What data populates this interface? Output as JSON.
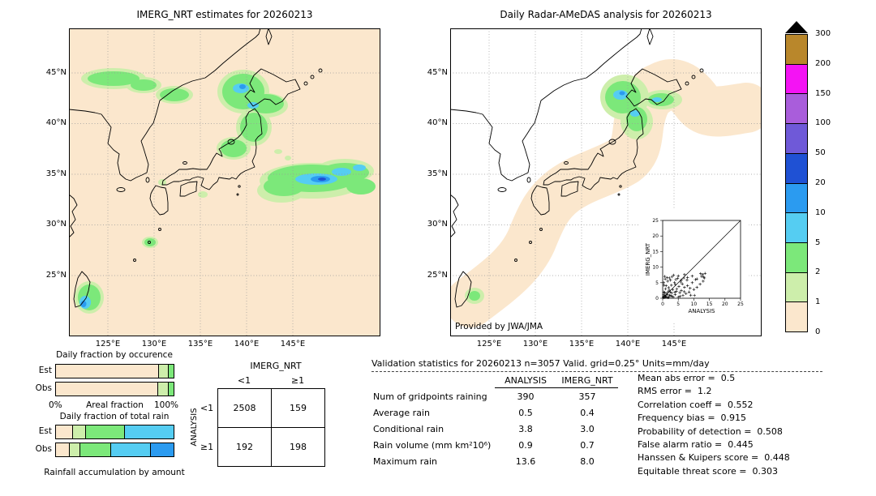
{
  "chart_data": [
    {
      "type": "map",
      "id": "imerg_map",
      "title": "IMERG_NRT estimates for 20260213",
      "lat_ticks": [
        "45°N",
        "40°N",
        "35°N",
        "30°N",
        "25°N"
      ],
      "lon_ticks": [
        "125°E",
        "130°E",
        "135°E",
        "140°E",
        "145°E"
      ],
      "units": "mm/day"
    },
    {
      "type": "map",
      "id": "radar_amedas_map",
      "title": "Daily Radar-AMeDAS analysis for 20260213",
      "credit": "Provided by JWA/JMA",
      "lat_ticks": [
        "45°N",
        "40°N",
        "35°N",
        "30°N",
        "25°N"
      ],
      "lon_ticks": [
        "125°E",
        "130°E",
        "135°E",
        "140°E",
        "145°E"
      ],
      "units": "mm/day"
    },
    {
      "type": "scatter",
      "id": "inset_scatter",
      "xlabel": "ANALYSIS",
      "ylabel": "IMERG_NRT",
      "xlim": [
        0,
        25
      ],
      "ylim": [
        0,
        25
      ],
      "ticks": [
        "0",
        "5",
        "10",
        "15",
        "20",
        "25"
      ],
      "points": [
        [
          0.2,
          0.3
        ],
        [
          0.5,
          0.2
        ],
        [
          0.3,
          1.1
        ],
        [
          1.0,
          0.5
        ],
        [
          0.8,
          0.9
        ],
        [
          1.2,
          0.4
        ],
        [
          0.4,
          2.0
        ],
        [
          2.0,
          0.3
        ],
        [
          1.5,
          1.2
        ],
        [
          0.6,
          1.8
        ],
        [
          2.2,
          1.0
        ],
        [
          1.8,
          2.1
        ],
        [
          0.9,
          3.0
        ],
        [
          3.0,
          0.6
        ],
        [
          2.5,
          2.0
        ],
        [
          1.1,
          4.0
        ],
        [
          4.0,
          1.2
        ],
        [
          3.2,
          2.8
        ],
        [
          0.3,
          5.0
        ],
        [
          5.0,
          0.4
        ],
        [
          2.8,
          4.2
        ],
        [
          4.5,
          3.0
        ],
        [
          1.6,
          5.5
        ],
        [
          5.5,
          1.8
        ],
        [
          3.8,
          5.0
        ],
        [
          6.0,
          2.5
        ],
        [
          2.2,
          6.5
        ],
        [
          6.5,
          0.9
        ],
        [
          4.2,
          6.0
        ],
        [
          7.0,
          3.5
        ],
        [
          0.7,
          7.0
        ],
        [
          7.5,
          1.5
        ],
        [
          5.8,
          5.2
        ],
        [
          8.0,
          4.0
        ],
        [
          3.5,
          7.4
        ],
        [
          8.5,
          2.0
        ],
        [
          6.8,
          6.5
        ],
        [
          9.0,
          1.0
        ],
        [
          2.5,
          5.8
        ],
        [
          9.5,
          5.0
        ],
        [
          10.0,
          2.8
        ],
        [
          4.8,
          6.4
        ],
        [
          10.5,
          6.0
        ],
        [
          11.0,
          3.5
        ],
        [
          6.0,
          5.9
        ],
        [
          12.0,
          4.5
        ],
        [
          8.0,
          6.7
        ],
        [
          12.5,
          7.0
        ],
        [
          13.0,
          5.5
        ],
        [
          9.5,
          7.1
        ],
        [
          13.4,
          6.5
        ],
        [
          11.0,
          6.2
        ],
        [
          12.8,
          7.6
        ],
        [
          13.2,
          6.8
        ],
        [
          12.2,
          7.9
        ],
        [
          7.0,
          7.6
        ],
        [
          13.6,
          8.0
        ],
        [
          5.0,
          7.2
        ],
        [
          3.0,
          6.9
        ],
        [
          1.5,
          6.6
        ],
        [
          0.4,
          4.2
        ],
        [
          1.9,
          3.4
        ],
        [
          2.9,
          1.7
        ],
        [
          3.4,
          0.4
        ],
        [
          4.4,
          2.2
        ],
        [
          5.2,
          3.8
        ],
        [
          6.3,
          4.6
        ],
        [
          7.8,
          5.8
        ],
        [
          0.8,
          6.2
        ],
        [
          2.1,
          2.6
        ],
        [
          1.3,
          1.6
        ],
        [
          0.6,
          0.7
        ],
        [
          1.7,
          0.2
        ],
        [
          2.6,
          0.8
        ],
        [
          3.9,
          1.9
        ],
        [
          4.1,
          4.4
        ],
        [
          5.6,
          0.6
        ],
        [
          6.9,
          2.1
        ],
        [
          8.8,
          3.2
        ],
        [
          10.2,
          0.9
        ]
      ]
    },
    {
      "type": "bar",
      "id": "fraction_occurrence",
      "title": "Daily fraction by occurence",
      "axis_left": "0%",
      "axis_label": "Areal fraction",
      "axis_right": "100%",
      "rows": [
        {
          "label": "Est",
          "segments": [
            {
              "color": "#fbe7cd",
              "pct": 87
            },
            {
              "color": "#cdeeab",
              "pct": 8
            },
            {
              "color": "#7ce87a",
              "pct": 5
            }
          ]
        },
        {
          "label": "Obs",
          "segments": [
            {
              "color": "#fbe7cd",
              "pct": 86
            },
            {
              "color": "#cdeeab",
              "pct": 9
            },
            {
              "color": "#7ce87a",
              "pct": 5
            }
          ]
        }
      ]
    },
    {
      "type": "bar",
      "id": "fraction_total_rain",
      "title": "Daily fraction of total rain",
      "footer": "Rainfall accumulation by amount",
      "rows": [
        {
          "label": "Est",
          "segments": [
            {
              "color": "#fbe7cd",
              "pct": 14
            },
            {
              "color": "#cdeeab",
              "pct": 11
            },
            {
              "color": "#7ce87a",
              "pct": 33
            },
            {
              "color": "#55cdf2",
              "pct": 42
            }
          ]
        },
        {
          "label": "Obs",
          "segments": [
            {
              "color": "#fbe7cd",
              "pct": 11
            },
            {
              "color": "#cdeeab",
              "pct": 9
            },
            {
              "color": "#7ce87a",
              "pct": 26
            },
            {
              "color": "#55cdf2",
              "pct": 34
            },
            {
              "color": "#2b9bf0",
              "pct": 20
            }
          ]
        }
      ]
    },
    {
      "type": "table",
      "id": "contingency_table",
      "col_group": "IMERG_NRT",
      "row_group": "ANALYSIS",
      "col_labels": [
        "<1",
        "≥1"
      ],
      "row_labels": [
        "<1",
        "≥1"
      ],
      "cells": [
        [
          "2508",
          "159"
        ],
        [
          "192",
          "198"
        ]
      ]
    },
    {
      "type": "table",
      "id": "validation_stats",
      "title": "Validation statistics for 20260213  n=3057 Valid. grid=0.25° Units=mm/day",
      "columns": [
        "ANALYSIS",
        "IMERG_NRT"
      ],
      "rows": [
        {
          "label": "Num of gridpoints raining",
          "analysis": "390",
          "imerg_nrt": "357"
        },
        {
          "label": "Average rain",
          "analysis": "0.5",
          "imerg_nrt": "0.4"
        },
        {
          "label": "Conditional rain",
          "analysis": "3.8",
          "imerg_nrt": "3.0"
        },
        {
          "label": "Rain volume (mm km²10⁶)",
          "analysis": "0.9",
          "imerg_nrt": "0.7"
        },
        {
          "label": "Maximum rain",
          "analysis": "13.6",
          "imerg_nrt": "8.0"
        }
      ],
      "scores": [
        "Mean abs error =  0.5",
        "RMS error =  1.2",
        "Correlation coeff =  0.552",
        "Frequency bias =  0.915",
        "Probability of detection =  0.508",
        "False alarm ratio =  0.445",
        "Hanssen & Kuipers score =  0.448",
        "Equitable threat score =  0.303"
      ]
    }
  ],
  "colorbar": {
    "labels": [
      "300",
      "200",
      "150",
      "100",
      "50",
      "20",
      "10",
      "5",
      "2",
      "1",
      "0"
    ],
    "colors_top_to_bottom": [
      "#b9872b",
      "#f413f4",
      "#a95ddb",
      "#6f59d8",
      "#1f51d4",
      "#2b9bf0",
      "#55cdf2",
      "#7ce87a",
      "#cdeeab",
      "#fbe7cd"
    ],
    "over_color": "#000000"
  }
}
